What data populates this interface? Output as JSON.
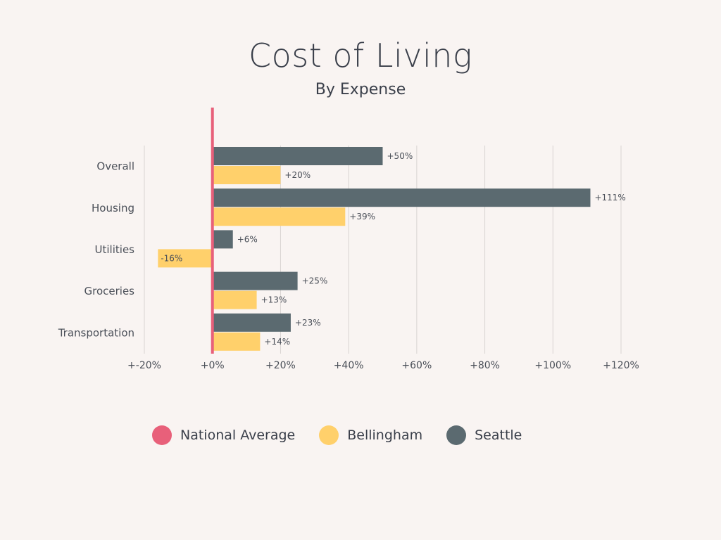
{
  "chart_data": {
    "type": "bar",
    "orientation": "horizontal",
    "title": "Cost of Living",
    "subtitle": "By Expense",
    "categories": [
      "Overall",
      "Housing",
      "Utilities",
      "Groceries",
      "Transportation"
    ],
    "series": [
      {
        "name": "Seattle",
        "color": "#5b6a70",
        "values": [
          50,
          111,
          6,
          25,
          23
        ],
        "labels": [
          "+50%",
          "+111%",
          "+6%",
          "+25%",
          "+23%"
        ]
      },
      {
        "name": "Bellingham",
        "color": "#ffd06b",
        "values": [
          20,
          39,
          -16,
          13,
          14
        ],
        "labels": [
          "+20%",
          "+39%",
          "-16%",
          "+13%",
          "+14%"
        ]
      }
    ],
    "reference_line": {
      "name": "National Average",
      "value": 0,
      "color": "#e8607a"
    },
    "xlim": [
      -20,
      120
    ],
    "xticks": [
      -20,
      0,
      20,
      40,
      60,
      80,
      100,
      120
    ],
    "xtick_labels": [
      "+-20%",
      "+0%",
      "+20%",
      "+40%",
      "+60%",
      "+80%",
      "+100%",
      "+120%"
    ],
    "grid": true,
    "legend": {
      "position": "bottom",
      "items": [
        {
          "label": "National Average",
          "color": "#e8607a"
        },
        {
          "label": "Bellingham",
          "color": "#ffd06b"
        },
        {
          "label": "Seattle",
          "color": "#5b6a70"
        }
      ]
    }
  }
}
